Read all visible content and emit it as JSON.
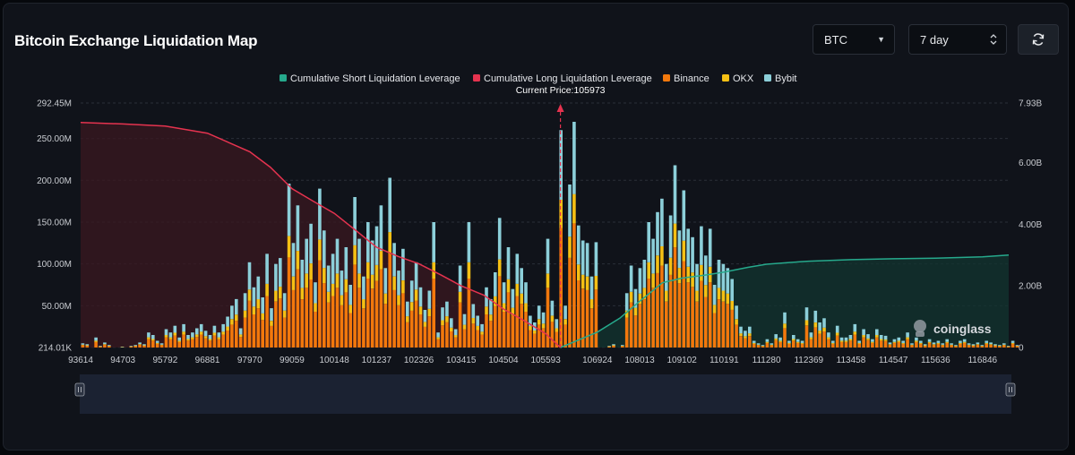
{
  "header": {
    "title": "Bitcoin Exchange Liquidation Map",
    "symbol_select": "BTC",
    "range_select": "7 day",
    "refresh_icon": "refresh-icon"
  },
  "colors": {
    "short_cumulative": "#26a98c",
    "long_cumulative": "#e5334f",
    "binance": "#f2780c",
    "okx": "#f5c014",
    "bybit": "#8ccfd9"
  },
  "brand": "coinglass",
  "chart_data": {
    "type": "bar",
    "title": "",
    "current_price_label": "Current Price:105973",
    "current_price": 105973,
    "x_ticks": [
      "93614",
      "94703",
      "95792",
      "96881",
      "97970",
      "99059",
      "100148",
      "101237",
      "102326",
      "103415",
      "104504",
      "105593",
      "106924",
      "108013",
      "109102",
      "110191",
      "111280",
      "112369",
      "113458",
      "114547",
      "115636",
      "116846"
    ],
    "x_range": [
      93614,
      117520
    ],
    "y_left_ticks": [
      "214.01K",
      "50.00M",
      "100.00M",
      "150.00M",
      "200.00M",
      "250.00M",
      "292.45M"
    ],
    "y_left_range": [
      0,
      292.45
    ],
    "y_left_unit": "M",
    "y_right_ticks": [
      "0",
      "2.00B",
      "4.00B",
      "6.00B",
      "7.93B"
    ],
    "y_right_range": [
      0,
      7.93
    ],
    "y_right_unit": "B",
    "legend": [
      "Cumulative Short Liquidation Leverage",
      "Cumulative Long Liquidation Leverage",
      "Binance",
      "OKX",
      "Bybit"
    ],
    "legend_position": "top-center",
    "stack_keys": [
      "Binance",
      "OKX",
      "Bybit"
    ],
    "bar_step": 113,
    "bar_totals": [
      5,
      4,
      0,
      12,
      2,
      6,
      3,
      0,
      0,
      1,
      0,
      2,
      3,
      6,
      4,
      18,
      15,
      8,
      5,
      22,
      18,
      26,
      12,
      28,
      15,
      18,
      23,
      28,
      20,
      15,
      26,
      18,
      28,
      37,
      50,
      58,
      23,
      65,
      102,
      72,
      85,
      60,
      112,
      47,
      100,
      107,
      65,
      196,
      125,
      170,
      105,
      130,
      148,
      78,
      190,
      140,
      98,
      112,
      130,
      92,
      120,
      75,
      180,
      130,
      85,
      150,
      128,
      145,
      170,
      95,
      203,
      125,
      92,
      118,
      55,
      80,
      102,
      72,
      45,
      68,
      150,
      18,
      48,
      55,
      35,
      22,
      98,
      40,
      150,
      52,
      38,
      28,
      72,
      58,
      90,
      155,
      78,
      120,
      70,
      112,
      95,
      78,
      38,
      30,
      50,
      42,
      130,
      56,
      34,
      260,
      50,
      195,
      270,
      146,
      128,
      125,
      85,
      126,
      0,
      0,
      2,
      4,
      0,
      3,
      65,
      98,
      70,
      95,
      105,
      150,
      130,
      162,
      178,
      100,
      158,
      218,
      140,
      188,
      142,
      132,
      100,
      145,
      110,
      142,
      75,
      105,
      100,
      95,
      82,
      50,
      25,
      20,
      25,
      8,
      5,
      3,
      10,
      5,
      16,
      12,
      42,
      8,
      15,
      10,
      8,
      48,
      18,
      44,
      30,
      35,
      18,
      8,
      26,
      12,
      12,
      15,
      28,
      8,
      22,
      16,
      10,
      22,
      15,
      14,
      6,
      10,
      12,
      8,
      18,
      5,
      12,
      8,
      4,
      10,
      6,
      8,
      5,
      10,
      5,
      3,
      8,
      10,
      5,
      4,
      6,
      3,
      8,
      6,
      4,
      3,
      5,
      2,
      8,
      3
    ],
    "series": [
      {
        "name": "Cumulative Long Liquidation Leverage",
        "axis": "right",
        "x": [
          93614,
          94703,
          95792,
          96881,
          97970,
          98500,
          99059,
          99600,
          100148,
          100700,
          101237,
          101800,
          102326,
          102900,
          103415,
          104000,
          104504,
          105000,
          105593,
          105973
        ],
        "y": [
          7.3,
          7.25,
          7.18,
          6.95,
          6.35,
          5.85,
          5.15,
          4.75,
          4.35,
          3.8,
          3.25,
          2.95,
          2.72,
          2.35,
          2.0,
          1.7,
          1.25,
          0.9,
          0.45,
          0
        ]
      },
      {
        "name": "Cumulative Short Liquidation Leverage",
        "axis": "right",
        "x": [
          105973,
          106924,
          107500,
          108013,
          108600,
          109102,
          109700,
          110191,
          110800,
          111280,
          111900,
          112369,
          113000,
          113458,
          114547,
          115636,
          116846,
          117520
        ],
        "y": [
          0,
          0.5,
          0.95,
          1.5,
          2.1,
          2.25,
          2.35,
          2.45,
          2.6,
          2.7,
          2.76,
          2.8,
          2.83,
          2.85,
          2.88,
          2.9,
          2.94,
          3.0
        ]
      }
    ]
  }
}
